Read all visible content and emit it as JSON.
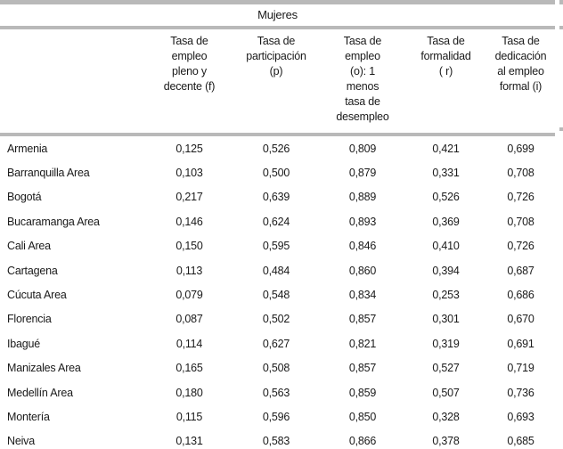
{
  "table": {
    "title": "Mujeres",
    "columns": [
      {
        "label": ""
      },
      {
        "label": "Tasa de\nempleo\npleno y\ndecente (f)"
      },
      {
        "label": "Tasa de\nparticipación\n(p)"
      },
      {
        "label": "Tasa de\nempleo\n(o): 1\nmenos\ntasa de\ndesempleo"
      },
      {
        "label": "Tasa de\nformalidad\n( r)"
      },
      {
        "label": "Tasa de\ndedicación\nal empleo\nformal (i)"
      }
    ],
    "rows": [
      {
        "city": "Armenia",
        "values": [
          "0,125",
          "0,526",
          "0,809",
          "0,421",
          "0,699"
        ]
      },
      {
        "city": "Barranquilla Area",
        "values": [
          "0,103",
          "0,500",
          "0,879",
          "0,331",
          "0,708"
        ]
      },
      {
        "city": "Bogotá",
        "values": [
          "0,217",
          "0,639",
          "0,889",
          "0,526",
          "0,726"
        ]
      },
      {
        "city": "Bucaramanga Area",
        "values": [
          "0,146",
          "0,624",
          "0,893",
          "0,369",
          "0,708"
        ]
      },
      {
        "city": "Cali Area",
        "values": [
          "0,150",
          "0,595",
          "0,846",
          "0,410",
          "0,726"
        ]
      },
      {
        "city": "Cartagena",
        "values": [
          "0,113",
          "0,484",
          "0,860",
          "0,394",
          "0,687"
        ]
      },
      {
        "city": "Cúcuta Area",
        "values": [
          "0,079",
          "0,548",
          "0,834",
          "0,253",
          "0,686"
        ]
      },
      {
        "city": "Florencia",
        "values": [
          "0,087",
          "0,502",
          "0,857",
          "0,301",
          "0,670"
        ]
      },
      {
        "city": "Ibagué",
        "values": [
          "0,114",
          "0,627",
          "0,821",
          "0,319",
          "0,691"
        ]
      },
      {
        "city": "Manizales Area",
        "values": [
          "0,165",
          "0,508",
          "0,857",
          "0,527",
          "0,719"
        ]
      },
      {
        "city": "Medellín Area",
        "values": [
          "0,180",
          "0,563",
          "0,859",
          "0,507",
          "0,736"
        ]
      },
      {
        "city": "Montería",
        "values": [
          "0,115",
          "0,596",
          "0,850",
          "0,328",
          "0,693"
        ]
      },
      {
        "city": "Neiva",
        "values": [
          "0,131",
          "0,583",
          "0,866",
          "0,378",
          "0,685"
        ]
      }
    ]
  },
  "colors": {
    "rule_gray": "#b9b9b9",
    "text": "#1a1a1a",
    "background": "#ffffff"
  }
}
